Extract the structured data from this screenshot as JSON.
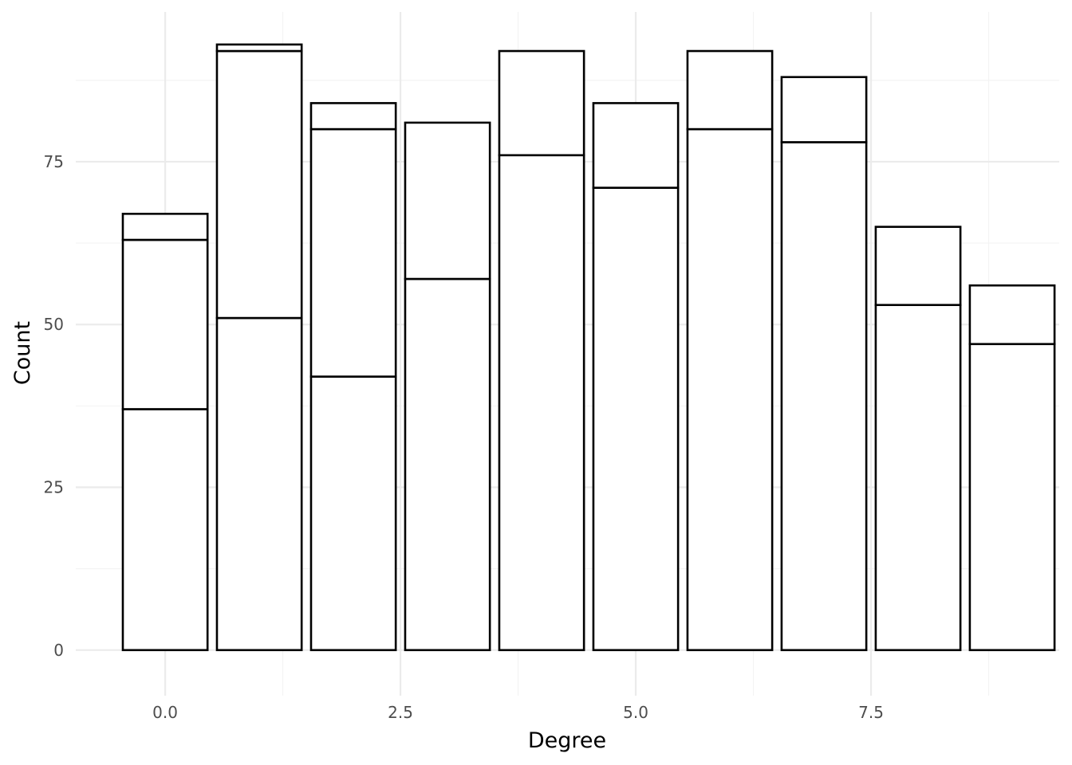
{
  "chart_data": {
    "type": "bar",
    "stacked": true,
    "x": [
      0,
      1,
      2,
      3,
      4,
      5,
      6,
      7,
      8,
      9
    ],
    "series": [
      {
        "values": [
          37,
          51,
          42,
          57,
          76,
          71,
          80,
          78,
          53,
          47
        ]
      },
      {
        "values": [
          26,
          41,
          38,
          24,
          16,
          13,
          12,
          10,
          12,
          9
        ]
      },
      {
        "values": [
          4,
          1,
          4,
          0,
          0,
          0,
          0,
          0,
          0,
          0
        ]
      }
    ],
    "totals": [
      67,
      93,
      84,
      81,
      92,
      84,
      92,
      88,
      65,
      56
    ],
    "xlabel": "Degree",
    "ylabel": "Count",
    "xlim": [
      -0.95,
      9.5
    ],
    "ylim": [
      -7,
      98
    ],
    "x_ticks": [
      0,
      2.5,
      5,
      7.5
    ],
    "x_tick_labels": [
      "0.0",
      "2.5",
      "5.0",
      "7.5"
    ],
    "y_ticks": [
      0,
      25,
      50,
      75
    ],
    "y_tick_labels": [
      "0",
      "25",
      "50",
      "75"
    ],
    "grid": true,
    "bar_fill": "#ffffff",
    "bar_outline": "#000000",
    "legend": "none"
  }
}
